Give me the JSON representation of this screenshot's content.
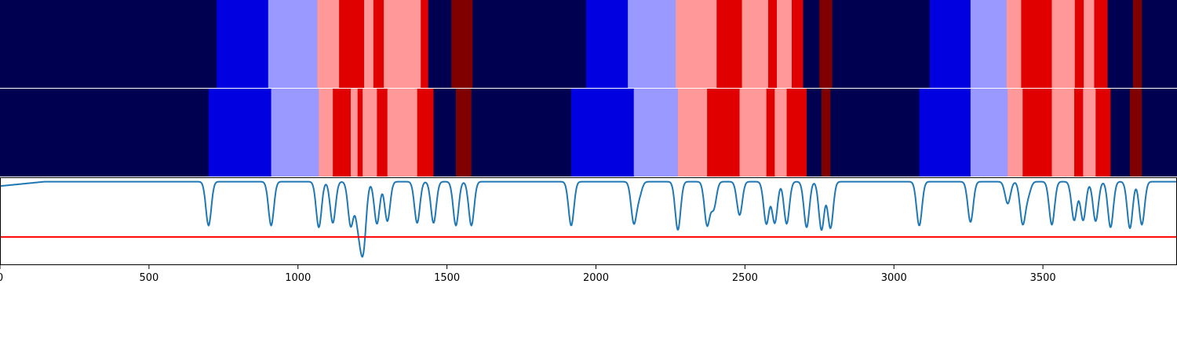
{
  "chart_data": [
    {
      "type": "heatmap",
      "xlim": [
        0,
        3950
      ],
      "segments": [
        {
          "x0": 0,
          "x1": 727,
          "color": "#000050"
        },
        {
          "x0": 727,
          "x1": 900,
          "color": "#0000e0"
        },
        {
          "x0": 900,
          "x1": 1065,
          "color": "#9999ff"
        },
        {
          "x0": 1065,
          "x1": 1138,
          "color": "#ff9999"
        },
        {
          "x0": 1138,
          "x1": 1222,
          "color": "#e00000"
        },
        {
          "x0": 1222,
          "x1": 1253,
          "color": "#ff9999"
        },
        {
          "x0": 1253,
          "x1": 1288,
          "color": "#e00000"
        },
        {
          "x0": 1288,
          "x1": 1412,
          "color": "#ff9999"
        },
        {
          "x0": 1412,
          "x1": 1437,
          "color": "#e00000"
        },
        {
          "x0": 1437,
          "x1": 1515,
          "color": "#000050"
        },
        {
          "x0": 1515,
          "x1": 1586,
          "color": "#800000"
        },
        {
          "x0": 1586,
          "x1": 1967,
          "color": "#000050"
        },
        {
          "x0": 1967,
          "x1": 2107,
          "color": "#0000e0"
        },
        {
          "x0": 2107,
          "x1": 2268,
          "color": "#9999ff"
        },
        {
          "x0": 2268,
          "x1": 2405,
          "color": "#ff9999"
        },
        {
          "x0": 2405,
          "x1": 2490,
          "color": "#e00000"
        },
        {
          "x0": 2490,
          "x1": 2578,
          "color": "#ff9999"
        },
        {
          "x0": 2578,
          "x1": 2607,
          "color": "#e00000"
        },
        {
          "x0": 2607,
          "x1": 2657,
          "color": "#ff9999"
        },
        {
          "x0": 2657,
          "x1": 2695,
          "color": "#e00000"
        },
        {
          "x0": 2695,
          "x1": 2750,
          "color": "#000050"
        },
        {
          "x0": 2750,
          "x1": 2793,
          "color": "#800000"
        },
        {
          "x0": 2793,
          "x1": 3120,
          "color": "#000050"
        },
        {
          "x0": 3120,
          "x1": 3257,
          "color": "#0000e0"
        },
        {
          "x0": 3257,
          "x1": 3378,
          "color": "#9999ff"
        },
        {
          "x0": 3378,
          "x1": 3427,
          "color": "#ff9999"
        },
        {
          "x0": 3427,
          "x1": 3530,
          "color": "#e00000"
        },
        {
          "x0": 3530,
          "x1": 3607,
          "color": "#ff9999"
        },
        {
          "x0": 3607,
          "x1": 3637,
          "color": "#e00000"
        },
        {
          "x0": 3637,
          "x1": 3672,
          "color": "#ff9999"
        },
        {
          "x0": 3672,
          "x1": 3717,
          "color": "#e00000"
        },
        {
          "x0": 3717,
          "x1": 3802,
          "color": "#000050"
        },
        {
          "x0": 3802,
          "x1": 3832,
          "color": "#800000"
        },
        {
          "x0": 3832,
          "x1": 3950,
          "color": "#000050"
        }
      ]
    },
    {
      "type": "heatmap",
      "xlim": [
        0,
        3950
      ],
      "segments": [
        {
          "x0": 0,
          "x1": 700,
          "color": "#000050"
        },
        {
          "x0": 700,
          "x1": 910,
          "color": "#0000e0"
        },
        {
          "x0": 910,
          "x1": 1070,
          "color": "#9999ff"
        },
        {
          "x0": 1070,
          "x1": 1117,
          "color": "#ff9999"
        },
        {
          "x0": 1117,
          "x1": 1177,
          "color": "#e00000"
        },
        {
          "x0": 1177,
          "x1": 1200,
          "color": "#ff9999"
        },
        {
          "x0": 1200,
          "x1": 1217,
          "color": "#e00000"
        },
        {
          "x0": 1217,
          "x1": 1265,
          "color": "#ff9999"
        },
        {
          "x0": 1265,
          "x1": 1300,
          "color": "#e00000"
        },
        {
          "x0": 1300,
          "x1": 1400,
          "color": "#ff9999"
        },
        {
          "x0": 1400,
          "x1": 1455,
          "color": "#e00000"
        },
        {
          "x0": 1455,
          "x1": 1530,
          "color": "#000050"
        },
        {
          "x0": 1530,
          "x1": 1582,
          "color": "#800000"
        },
        {
          "x0": 1582,
          "x1": 1917,
          "color": "#000050"
        },
        {
          "x0": 1917,
          "x1": 2127,
          "color": "#0000e0"
        },
        {
          "x0": 2127,
          "x1": 2275,
          "color": "#9999ff"
        },
        {
          "x0": 2275,
          "x1": 2373,
          "color": "#ff9999"
        },
        {
          "x0": 2373,
          "x1": 2482,
          "color": "#e00000"
        },
        {
          "x0": 2482,
          "x1": 2572,
          "color": "#ff9999"
        },
        {
          "x0": 2572,
          "x1": 2600,
          "color": "#e00000"
        },
        {
          "x0": 2600,
          "x1": 2640,
          "color": "#ff9999"
        },
        {
          "x0": 2640,
          "x1": 2707,
          "color": "#e00000"
        },
        {
          "x0": 2707,
          "x1": 2757,
          "color": "#000050"
        },
        {
          "x0": 2757,
          "x1": 2787,
          "color": "#800000"
        },
        {
          "x0": 2787,
          "x1": 3085,
          "color": "#000050"
        },
        {
          "x0": 3085,
          "x1": 3257,
          "color": "#0000e0"
        },
        {
          "x0": 3257,
          "x1": 3382,
          "color": "#9999ff"
        },
        {
          "x0": 3382,
          "x1": 3432,
          "color": "#ff9999"
        },
        {
          "x0": 3432,
          "x1": 3530,
          "color": "#e00000"
        },
        {
          "x0": 3530,
          "x1": 3605,
          "color": "#ff9999"
        },
        {
          "x0": 3605,
          "x1": 3635,
          "color": "#e00000"
        },
        {
          "x0": 3635,
          "x1": 3677,
          "color": "#ff9999"
        },
        {
          "x0": 3677,
          "x1": 3727,
          "color": "#e00000"
        },
        {
          "x0": 3727,
          "x1": 3792,
          "color": "#000050"
        },
        {
          "x0": 3792,
          "x1": 3832,
          "color": "#800000"
        },
        {
          "x0": 3832,
          "x1": 3950,
          "color": "#000050"
        }
      ]
    },
    {
      "type": "line",
      "xlim": [
        0,
        3950
      ],
      "ylim": [
        0,
        1
      ],
      "grid": false,
      "x_ticks": [
        0,
        500,
        1000,
        1500,
        2000,
        2500,
        3000,
        3500
      ],
      "x_tick_labels": [
        "0",
        "500",
        "1000",
        "1500",
        "2000",
        "2500",
        "3000",
        "3500"
      ],
      "series": [
        {
          "color": "#1f77b4",
          "baseline": 0.95,
          "baseline_start": 0.9,
          "dips": [
            {
              "x": 700,
              "depth": 0.5
            },
            {
              "x": 910,
              "depth": 0.5
            },
            {
              "x": 1070,
              "depth": 0.52
            },
            {
              "x": 1117,
              "depth": 0.47
            },
            {
              "x": 1177,
              "depth": 0.5
            },
            {
              "x": 1200,
              "depth": 0.36
            },
            {
              "x": 1213,
              "depth": 0.42
            },
            {
              "x": 1222,
              "depth": 0.48
            },
            {
              "x": 1265,
              "depth": 0.48
            },
            {
              "x": 1300,
              "depth": 0.45
            },
            {
              "x": 1400,
              "depth": 0.47
            },
            {
              "x": 1455,
              "depth": 0.47
            },
            {
              "x": 1530,
              "depth": 0.5
            },
            {
              "x": 1582,
              "depth": 0.5
            },
            {
              "x": 1917,
              "depth": 0.5
            },
            {
              "x": 2127,
              "depth": 0.46
            },
            {
              "x": 2145,
              "depth": 0.15
            },
            {
              "x": 2275,
              "depth": 0.55
            },
            {
              "x": 2373,
              "depth": 0.49
            },
            {
              "x": 2395,
              "depth": 0.3
            },
            {
              "x": 2482,
              "depth": 0.38
            },
            {
              "x": 2572,
              "depth": 0.48
            },
            {
              "x": 2600,
              "depth": 0.47
            },
            {
              "x": 2640,
              "depth": 0.48
            },
            {
              "x": 2707,
              "depth": 0.52
            },
            {
              "x": 2757,
              "depth": 0.55
            },
            {
              "x": 2787,
              "depth": 0.53
            },
            {
              "x": 3085,
              "depth": 0.5
            },
            {
              "x": 3257,
              "depth": 0.46
            },
            {
              "x": 3382,
              "depth": 0.25
            },
            {
              "x": 3432,
              "depth": 0.47
            },
            {
              "x": 3450,
              "depth": 0.14
            },
            {
              "x": 3530,
              "depth": 0.49
            },
            {
              "x": 3605,
              "depth": 0.44
            },
            {
              "x": 3635,
              "depth": 0.44
            },
            {
              "x": 3677,
              "depth": 0.45
            },
            {
              "x": 3727,
              "depth": 0.52
            },
            {
              "x": 3792,
              "depth": 0.53
            },
            {
              "x": 3832,
              "depth": 0.49
            }
          ]
        },
        {
          "color": "#ff0000",
          "constant": 0.32
        }
      ]
    }
  ]
}
